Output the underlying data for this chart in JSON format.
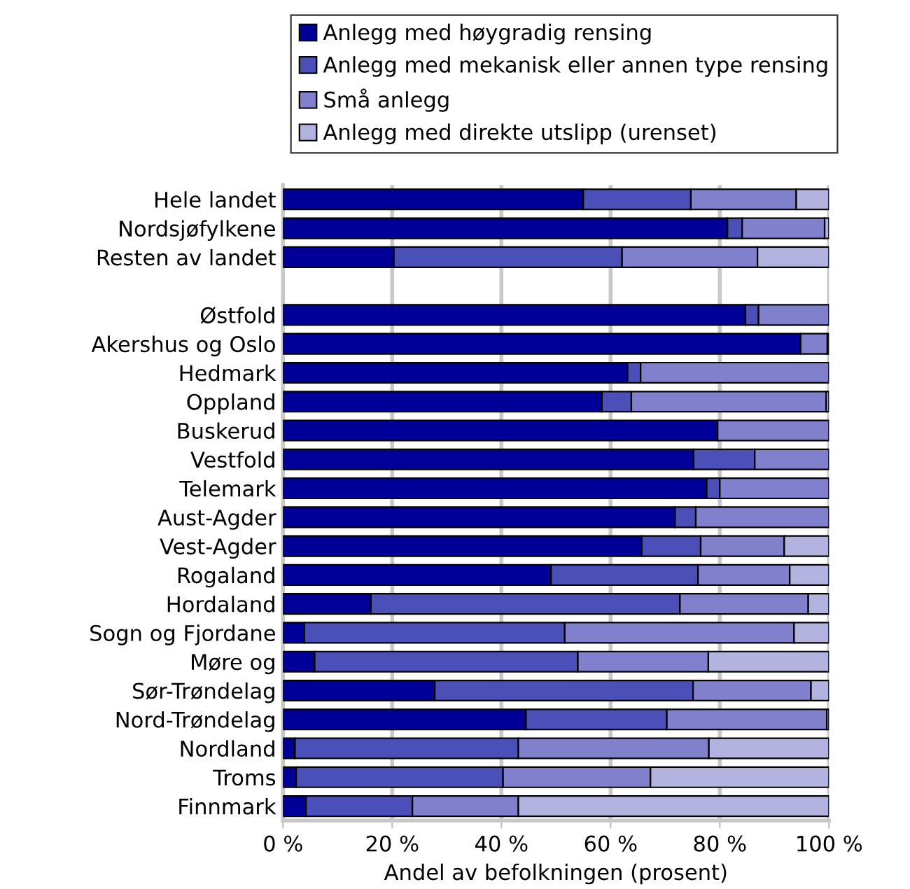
{
  "chart_data": {
    "type": "bar",
    "orientation": "horizontal",
    "stacked": true,
    "xlabel": "Andel av befolkningen (prosent)",
    "categories": [
      "Hele landet",
      "Nordsjøfylkene",
      "Resten av landet",
      null,
      "Østfold",
      "Akershus og Oslo",
      "Hedmark",
      "Oppland",
      "Buskerud",
      "Vestfold",
      "Telemark",
      "Aust-Agder",
      "Vest-Agder",
      "Rogaland",
      "Hordaland",
      "Sogn og Fjordane",
      "Møre og",
      "Sør-Trøndelag",
      "Nord-Trøndelag",
      "Nordland",
      "Troms",
      "Finnmark"
    ],
    "series": [
      {
        "name": "Anlegg med høygradig rensing",
        "color": "#000099",
        "values": [
          55.0,
          81.4,
          20.3,
          null,
          84.7,
          94.8,
          63.1,
          58.4,
          79.6,
          75.2,
          77.6,
          71.8,
          65.7,
          49.1,
          16.1,
          3.9,
          5.8,
          27.8,
          44.5,
          2.2,
          2.4,
          4.2
        ]
      },
      {
        "name": "Anlegg med mekanisk eller annen type rensing",
        "color": "#4b4fb8",
        "values": [
          19.7,
          2.7,
          41.8,
          null,
          2.4,
          0,
          2.4,
          5.4,
          0,
          11.2,
          2.4,
          3.8,
          10.8,
          26.9,
          56.6,
          47.7,
          48.2,
          47.3,
          25.8,
          40.9,
          37.9,
          19.5
        ]
      },
      {
        "name": "Små anlegg",
        "color": "#8080cc",
        "values": [
          19.3,
          15.1,
          24.8,
          null,
          12.9,
          4.9,
          34.5,
          35.7,
          20.4,
          13.6,
          20.0,
          24.4,
          15.3,
          16.8,
          23.5,
          42.0,
          23.9,
          21.6,
          29.3,
          34.9,
          27.0,
          19.4
        ]
      },
      {
        "name": "Anlegg med direkte utslipp (urenset)",
        "color": "#b3b3e0",
        "values": [
          6.0,
          0.8,
          13.1,
          null,
          0,
          0.3,
          0,
          0.5,
          0,
          0,
          0,
          0,
          8.2,
          7.2,
          3.8,
          6.4,
          22.1,
          3.3,
          0.4,
          22.0,
          32.7,
          56.9
        ]
      }
    ],
    "xlim": [
      0,
      100
    ],
    "xticks": [
      {
        "value": 0,
        "label": "0 %"
      },
      {
        "value": 20,
        "label": "20 %"
      },
      {
        "value": 40,
        "label": "40 %"
      },
      {
        "value": 60,
        "label": "60 %"
      },
      {
        "value": 80,
        "label": "80 %"
      },
      {
        "value": 100,
        "label": "100 %"
      }
    ],
    "grid": "x",
    "legend": "top"
  }
}
